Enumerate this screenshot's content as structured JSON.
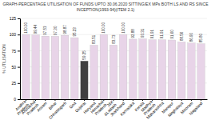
{
  "chart_data": {
    "type": "bar",
    "title": "GRAPH-PERCENTAGE UTILISATION OF FUNDS UPTO 30.06.2020 SITTING/EX MPs BOTH LS AND RS SINCE",
    "subtitle": "INCEPTION(1993-94)(ITEM 2.1)",
    "y_label": "% UTILISATION",
    "categories": [
      "Andhra\nPradesh",
      "Arunachal\nPradesh",
      "Assam",
      "Bihar",
      "Chhattisgarh",
      "Goa",
      "Gujarat",
      "Haryana",
      "Himachal\nPradesh",
      "J&K\n&Ladakh",
      "Jharkhand",
      "Karnataka",
      "Kerala",
      "Madhya\nPradesh",
      "Maharashtra",
      "Manipur",
      "Meghalaya",
      "Mizoram",
      "Nagaland"
    ],
    "values": [
      100.0,
      99.44,
      97.53,
      97.3,
      98.87,
      95.23,
      59.25,
      83.51,
      100.0,
      83.73,
      100.0,
      92.88,
      93.31,
      91.91,
      91.91,
      91.6,
      88.56,
      86.9,
      85.8
    ],
    "value_labels": [
      "100.00",
      "99.44",
      "97.53",
      "97.30",
      "98.87",
      "95.23",
      "59.25",
      "83.51",
      "100.00",
      "83.73",
      "100.00",
      "92.88",
      "93.31",
      "91.91",
      "91.91",
      "91.60",
      "88.56",
      "86.90",
      "85.80"
    ],
    "colors": [
      "#e8d4e8",
      "#e8d4e8",
      "#e8d4e8",
      "#e8d4e8",
      "#e8d4e8",
      "#e8d4e8",
      "#404040",
      "#e8d4e8",
      "#e8d4e8",
      "#e8d4e8",
      "#e8d4e8",
      "#e8d4e8",
      "#e8d4e8",
      "#e8d4e8",
      "#e8d4e8",
      "#e8d4e8",
      "#e8d4e8",
      "#e8d4e8",
      "#e8d4e8"
    ],
    "ylim": [
      0,
      125
    ],
    "yticks": [
      0,
      25,
      50,
      75,
      100,
      125
    ],
    "grid": true,
    "data_labels": true
  }
}
